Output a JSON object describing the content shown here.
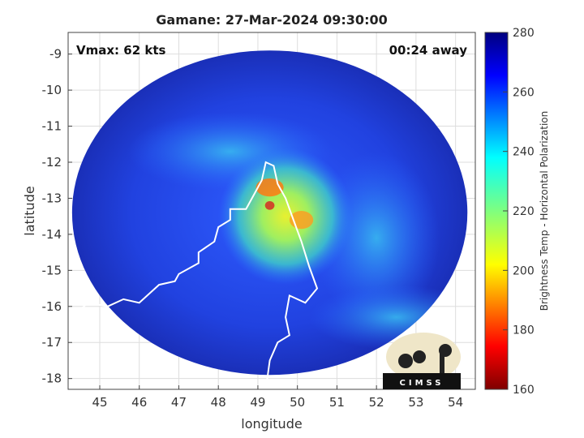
{
  "chart_data": {
    "type": "heatmap",
    "title": "Gamane: 27-Mar-2024 09:30:00",
    "xlabel": "longitude",
    "ylabel": "latitude",
    "x_ticks": [
      45,
      46,
      47,
      48,
      49,
      50,
      51,
      52,
      53,
      54
    ],
    "y_ticks": [
      -9,
      -10,
      -11,
      -12,
      -13,
      -14,
      -15,
      -16,
      -17,
      -18
    ],
    "xlim": [
      44.2,
      54.5
    ],
    "ylim": [
      -18.3,
      -8.4
    ],
    "grid": true,
    "annotations": {
      "vmax": "Vmax: 62 kts",
      "time_offset": "00:24 away"
    },
    "colorbar": {
      "label": "Brightness Temp - Horizontal Polarization",
      "ticks": [
        280,
        260,
        240,
        220,
        200,
        180,
        160
      ],
      "range": [
        160,
        280
      ],
      "colormap": "jet"
    },
    "storm_center": {
      "lon": 49.6,
      "lat": -13.3
    },
    "swath": {
      "center_lon": 49.3,
      "center_lat": -13.4,
      "radius_deg": 5.0
    },
    "logo": "CIMSS"
  },
  "colors": {
    "background_cold": "#1a2fa8",
    "swath_edge": "#0d1a8a",
    "coastline": "#ffffff"
  }
}
